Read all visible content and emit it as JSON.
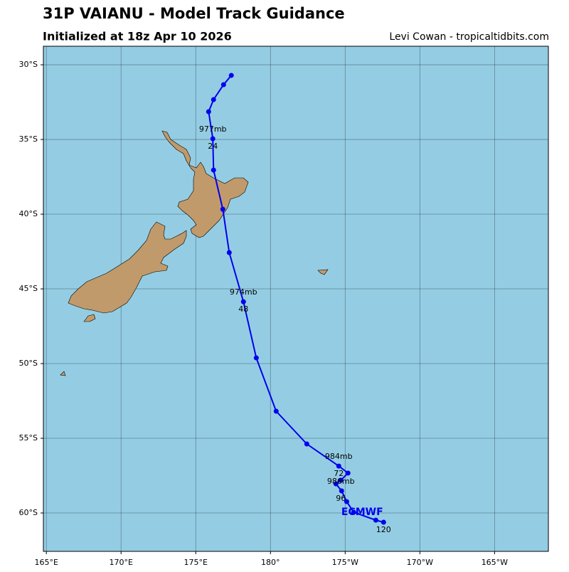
{
  "header": {
    "title": "31P VAIANU - Model Track Guidance",
    "subtitle": "Initialized at 18z Apr 10 2026",
    "credit": "Levi Cowan - tropicaltidbits.com"
  },
  "map": {
    "lonlim": [
      164.8,
      198.6
    ],
    "latlim": [
      -62.57,
      -28.76
    ],
    "lonticks": [
      {
        "value": 165,
        "label": "165°E"
      },
      {
        "value": 170,
        "label": "170°E"
      },
      {
        "value": 175,
        "label": "175°E"
      },
      {
        "value": 180,
        "label": "180°"
      },
      {
        "value": 185,
        "label": "175°W"
      },
      {
        "value": 190,
        "label": "170°W"
      },
      {
        "value": 195,
        "label": "165°W"
      }
    ],
    "latticks": [
      {
        "value": -30,
        "label": "30°S"
      },
      {
        "value": -35,
        "label": "35°S"
      },
      {
        "value": -40,
        "label": "40°S"
      },
      {
        "value": -45,
        "label": "45°S"
      },
      {
        "value": -50,
        "label": "50°S"
      },
      {
        "value": -55,
        "label": "55°S"
      },
      {
        "value": -60,
        "label": "60°S"
      }
    ],
    "track": {
      "name": "ECMWF",
      "color": "#0000ee",
      "lon": [
        177.38,
        176.86,
        176.19,
        175.86,
        176.14,
        176.19,
        176.81,
        177.24,
        178.19,
        179.05,
        180.38,
        182.43,
        184.57,
        185.19,
        184.71,
        184.38,
        184.76,
        185.1,
        185.57,
        187.05,
        187.57
      ],
      "lat": [
        -30.71,
        -31.33,
        -32.33,
        -33.14,
        -34.95,
        -37.05,
        -39.67,
        -42.57,
        -45.86,
        -49.62,
        -53.19,
        -55.38,
        -56.86,
        -57.33,
        -57.81,
        -58.05,
        -58.52,
        -59.24,
        -59.95,
        -60.48,
        -60.62
      ]
    },
    "annotations": [
      {
        "text": "977mb",
        "lon": 176.14,
        "lat": -34.33
      },
      {
        "text": "24",
        "lon": 176.14,
        "lat": -35.48
      },
      {
        "text": "974mb",
        "lon": 178.19,
        "lat": -45.24
      },
      {
        "text": "48",
        "lon": 178.19,
        "lat": -46.38
      },
      {
        "text": "984mb",
        "lon": 184.57,
        "lat": -56.24
      },
      {
        "text": "72",
        "lon": 184.57,
        "lat": -57.38
      },
      {
        "text": "986mb",
        "lon": 184.71,
        "lat": -57.9
      },
      {
        "text": "96",
        "lon": 184.71,
        "lat": -59.05
      },
      {
        "text": "120",
        "lon": 187.57,
        "lat": -61.14
      }
    ]
  }
}
